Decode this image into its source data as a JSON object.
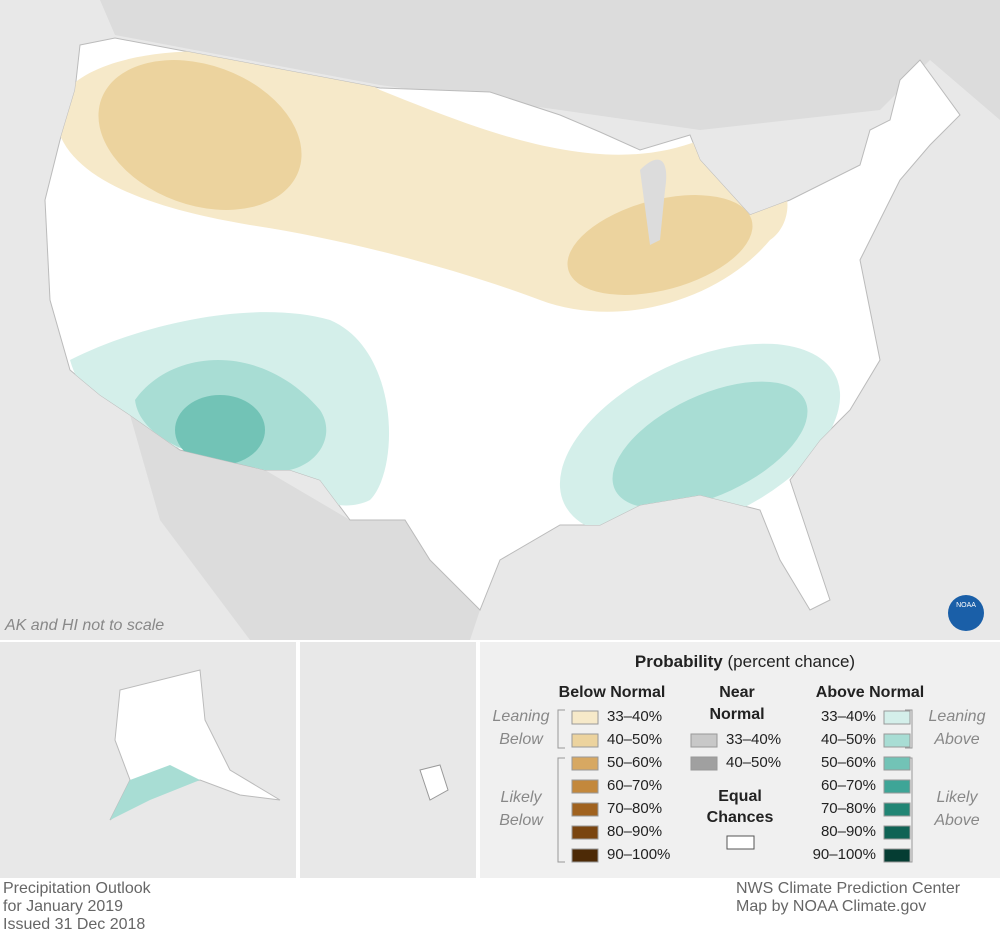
{
  "map": {
    "note": "AK and HI not to scale",
    "logo": "NOAA"
  },
  "legend": {
    "title": "Probability",
    "subtitle": "(percent chance)",
    "below": {
      "heading": "Below Normal",
      "leaning": [
        "Leaning",
        "Below"
      ],
      "likely": [
        "Likely",
        "Below"
      ],
      "items": [
        {
          "label": "33–40%",
          "color": "#f6e9c9"
        },
        {
          "label": "40–50%",
          "color": "#ecd39e"
        },
        {
          "label": "50–60%",
          "color": "#d7a862"
        },
        {
          "label": "60–70%",
          "color": "#c3883c"
        },
        {
          "label": "70–80%",
          "color": "#a0621f"
        },
        {
          "label": "80–90%",
          "color": "#7a4510"
        },
        {
          "label": "90–100%",
          "color": "#4d2a06"
        }
      ]
    },
    "near": {
      "heading": [
        "Near",
        "Normal"
      ],
      "items": [
        {
          "label": "33–40%",
          "color": "#c8c8c8"
        },
        {
          "label": "40–50%",
          "color": "#a0a0a0"
        }
      ]
    },
    "equal": {
      "heading": [
        "Equal",
        "Chances"
      ],
      "color": "#ffffff"
    },
    "above": {
      "heading": "Above Normal",
      "leaning": [
        "Leaning",
        "Above"
      ],
      "likely": [
        "Likely",
        "Above"
      ],
      "items": [
        {
          "label": "33–40%",
          "color": "#d4efea"
        },
        {
          "label": "40–50%",
          "color": "#a8ddd4"
        },
        {
          "label": "50–60%",
          "color": "#72c3b6"
        },
        {
          "label": "60–70%",
          "color": "#3ea597"
        },
        {
          "label": "70–80%",
          "color": "#218574"
        },
        {
          "label": "80–90%",
          "color": "#0f6355"
        },
        {
          "label": "90–100%",
          "color": "#053d33"
        }
      ]
    }
  },
  "footer": {
    "left": [
      "Precipitation Outlook",
      "for January 2019",
      "Issued 31 Dec 2018"
    ],
    "right": [
      "NWS Climate Prediction Center",
      "Map by NOAA Climate.gov"
    ]
  }
}
